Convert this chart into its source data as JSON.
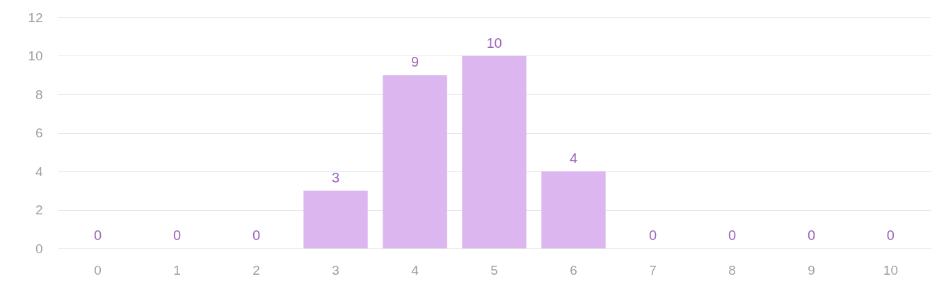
{
  "chart_data": {
    "type": "bar",
    "categories": [
      "0",
      "1",
      "2",
      "3",
      "4",
      "5",
      "6",
      "7",
      "8",
      "9",
      "10"
    ],
    "values": [
      0,
      0,
      0,
      3,
      9,
      10,
      4,
      0,
      0,
      0,
      0
    ],
    "color": "#dcb6ee",
    "ylim": [
      0,
      12
    ],
    "yticks": [
      0,
      2,
      4,
      6,
      8,
      10,
      12
    ],
    "grid": "y",
    "data_labels": true
  }
}
